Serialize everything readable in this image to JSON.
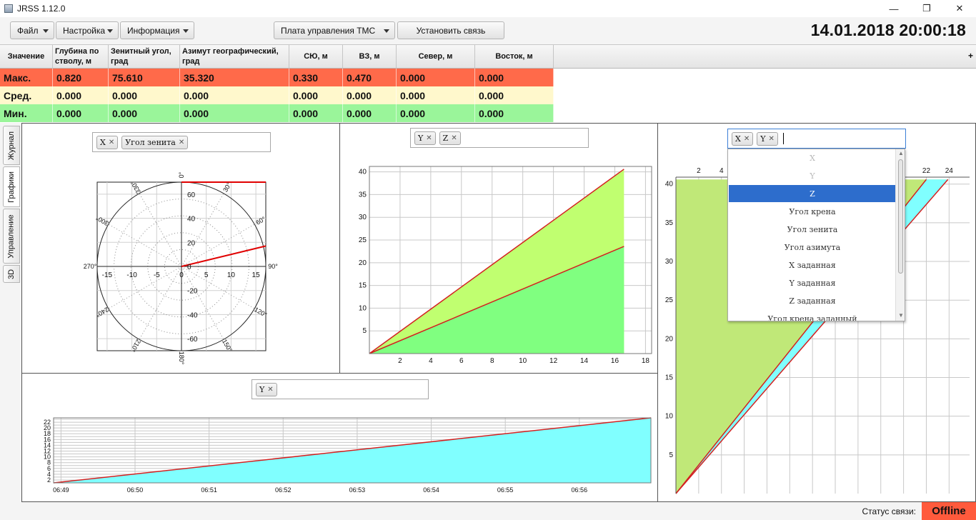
{
  "window": {
    "title": "JRSS 1.12.0",
    "minimize": "—",
    "maximize": "❐",
    "close": "✕"
  },
  "menu": {
    "file": "Файл",
    "settings": "Настройка",
    "info": "Информация",
    "tms_board": "Плата управления ТМС",
    "connect": "Установить связь"
  },
  "datetime": "14.01.2018 20:00:18",
  "table": {
    "headers": [
      "Значение",
      "Глубина по стволу, м",
      "Зенитный угол, град",
      "Азимут географический, град",
      "СЮ, м",
      "ВЗ, м",
      "Север, м",
      "Восток, м"
    ],
    "add_column": "+",
    "rows": [
      {
        "label": "Макс.",
        "values": [
          "0.820",
          "75.610",
          "35.320",
          "0.330",
          "0.470",
          "0.000",
          "0.000"
        ]
      },
      {
        "label": "Сред.",
        "values": [
          "0.000",
          "0.000",
          "0.000",
          "0.000",
          "0.000",
          "0.000",
          "0.000"
        ]
      },
      {
        "label": "Мин.",
        "values": [
          "0.000",
          "0.000",
          "0.000",
          "0.000",
          "0.000",
          "0.000",
          "0.000"
        ]
      }
    ]
  },
  "side_tabs": [
    "Журнал",
    "Графики",
    "Управление",
    "3D"
  ],
  "charts": {
    "polar": {
      "chips": [
        "X",
        "Угол зенита"
      ]
    },
    "yz": {
      "chips": [
        "Y",
        "Z"
      ]
    },
    "time": {
      "chips": [
        "Y"
      ]
    },
    "xy": {
      "chips": [
        "X",
        "Y"
      ]
    }
  },
  "dropdown": {
    "items": [
      "X",
      "Y",
      "Z",
      "Угол крена",
      "Угол зенита",
      "Угол азимута",
      "X заданная",
      "Y заданная",
      "Z заданная",
      "Угол крена заданный"
    ],
    "selected": "Z",
    "disabled": [
      "X",
      "Y"
    ]
  },
  "chart_data": [
    {
      "type": "scatter",
      "name": "polar",
      "angle_labels": [
        "0°",
        "30°",
        "60°",
        "90°",
        "120°",
        "150°",
        "180°",
        "210°",
        "240°",
        "270°",
        "300°",
        "330°"
      ],
      "x_ticks": [
        -15,
        -10,
        -5,
        0,
        5,
        10,
        15
      ],
      "y_ticks": [
        60,
        40,
        20,
        0,
        -20,
        -40,
        -60
      ],
      "xlim": [
        -17,
        17
      ],
      "ylim": [
        -70,
        70
      ],
      "series": [
        {
          "values": [
            [
              0,
              0
            ],
            [
              17,
              17
            ]
          ],
          "color": "#e00000"
        },
        {
          "values": [
            [
              0,
              70
            ],
            [
              17,
              70
            ]
          ],
          "color": "#e00000"
        }
      ]
    },
    {
      "type": "area",
      "name": "yz",
      "x_ticks": [
        2,
        4,
        6,
        8,
        10,
        12,
        14,
        16,
        18
      ],
      "y_ticks": [
        5,
        10,
        15,
        20,
        25,
        30,
        35,
        40
      ],
      "xlim": [
        0,
        18.4
      ],
      "ylim": [
        0,
        41.2
      ],
      "series": [
        {
          "values": [
            [
              0,
              0
            ],
            [
              16.6,
              40.6
            ]
          ],
          "color": "#c0ff70"
        },
        {
          "values": [
            [
              0,
              0
            ],
            [
              16.6,
              23.6
            ]
          ],
          "color": "#80ff80"
        }
      ]
    },
    {
      "type": "area",
      "name": "time",
      "x_ticks": [
        "06:49",
        "06:50",
        "06:51",
        "06:52",
        "06:53",
        "06:54",
        "06:55",
        "06:56"
      ],
      "y_ticks": [
        2,
        4,
        6,
        8,
        10,
        12,
        14,
        16,
        18,
        20,
        22
      ],
      "xlim": [
        "06:48:54",
        "06:56:58"
      ],
      "ylim": [
        1,
        23.5
      ],
      "series": [
        {
          "values": [
            [
              "06:48:54",
              1
            ],
            [
              "06:56:58",
              23.5
            ]
          ],
          "color": "#80ffff"
        }
      ]
    },
    {
      "type": "area",
      "name": "xy",
      "x_ticks": [
        2,
        4,
        22,
        24
      ],
      "y_ticks": [
        5,
        10,
        15,
        20,
        25,
        30,
        35,
        40
      ],
      "xlim": [
        0,
        25.8
      ],
      "ylim": [
        0,
        40.9
      ],
      "series": [
        {
          "values": [
            [
              0,
              0
            ],
            [
              23.9,
              40.6
            ]
          ],
          "color": "#c0e878"
        },
        {
          "values": [
            [
              0,
              0
            ],
            [
              22,
              40.6
            ]
          ],
          "color": "#80ffff"
        }
      ]
    }
  ],
  "status": {
    "label": "Статус связи:",
    "value": "Offline"
  }
}
